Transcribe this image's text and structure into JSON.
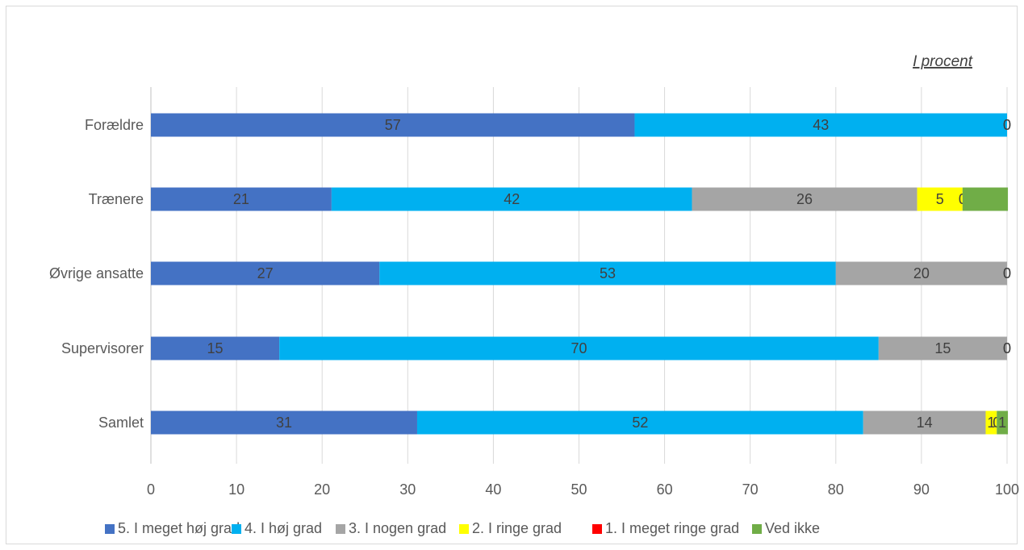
{
  "chart_data": {
    "type": "bar",
    "orientation": "horizontal",
    "stacked": true,
    "subtitle": "I procent",
    "categories": [
      "Forældre",
      "Trænere",
      "Øvrige ansatte",
      "Supervisorer",
      "Samlet"
    ],
    "series": [
      {
        "name": "5. I meget høj grad",
        "color": "#4472C4",
        "values": [
          56.5,
          21.1,
          26.7,
          15.0,
          31.1
        ],
        "labels": [
          "57",
          "21",
          "27",
          "15",
          "31"
        ]
      },
      {
        "name": "4. I høj grad",
        "color": "#00B0F0",
        "values": [
          43.5,
          42.1,
          53.3,
          70.0,
          52.1
        ],
        "labels": [
          "43",
          "42",
          "53",
          "70",
          "52"
        ]
      },
      {
        "name": "3. I nogen grad",
        "color": "#A5A5A5",
        "values": [
          0,
          26.3,
          20.0,
          15.0,
          14.3
        ],
        "labels": [
          "",
          "26",
          "20",
          "15",
          "14"
        ]
      },
      {
        "name": "2. I ringe grad",
        "color": "#FFFF00",
        "values": [
          0,
          5.3,
          0,
          0,
          1.3
        ],
        "labels": [
          "",
          "5",
          "",
          "",
          "1"
        ]
      },
      {
        "name": "1. I meget ringe grad",
        "color": "#FF0000",
        "values": [
          0,
          0,
          0,
          0,
          0
        ],
        "labels": [
          "0",
          "0",
          "0",
          "0",
          "0"
        ]
      },
      {
        "name": "Ved ikke",
        "color": "#70AD47",
        "values": [
          0,
          5.3,
          0,
          0,
          1.3
        ],
        "labels": [
          "0",
          "",
          "0",
          "0",
          "1"
        ]
      }
    ],
    "xlim": [
      0,
      100
    ],
    "xticks": [
      0,
      10,
      20,
      30,
      40,
      50,
      60,
      70,
      80,
      90,
      100
    ],
    "grid": true,
    "legend_position": "bottom"
  }
}
